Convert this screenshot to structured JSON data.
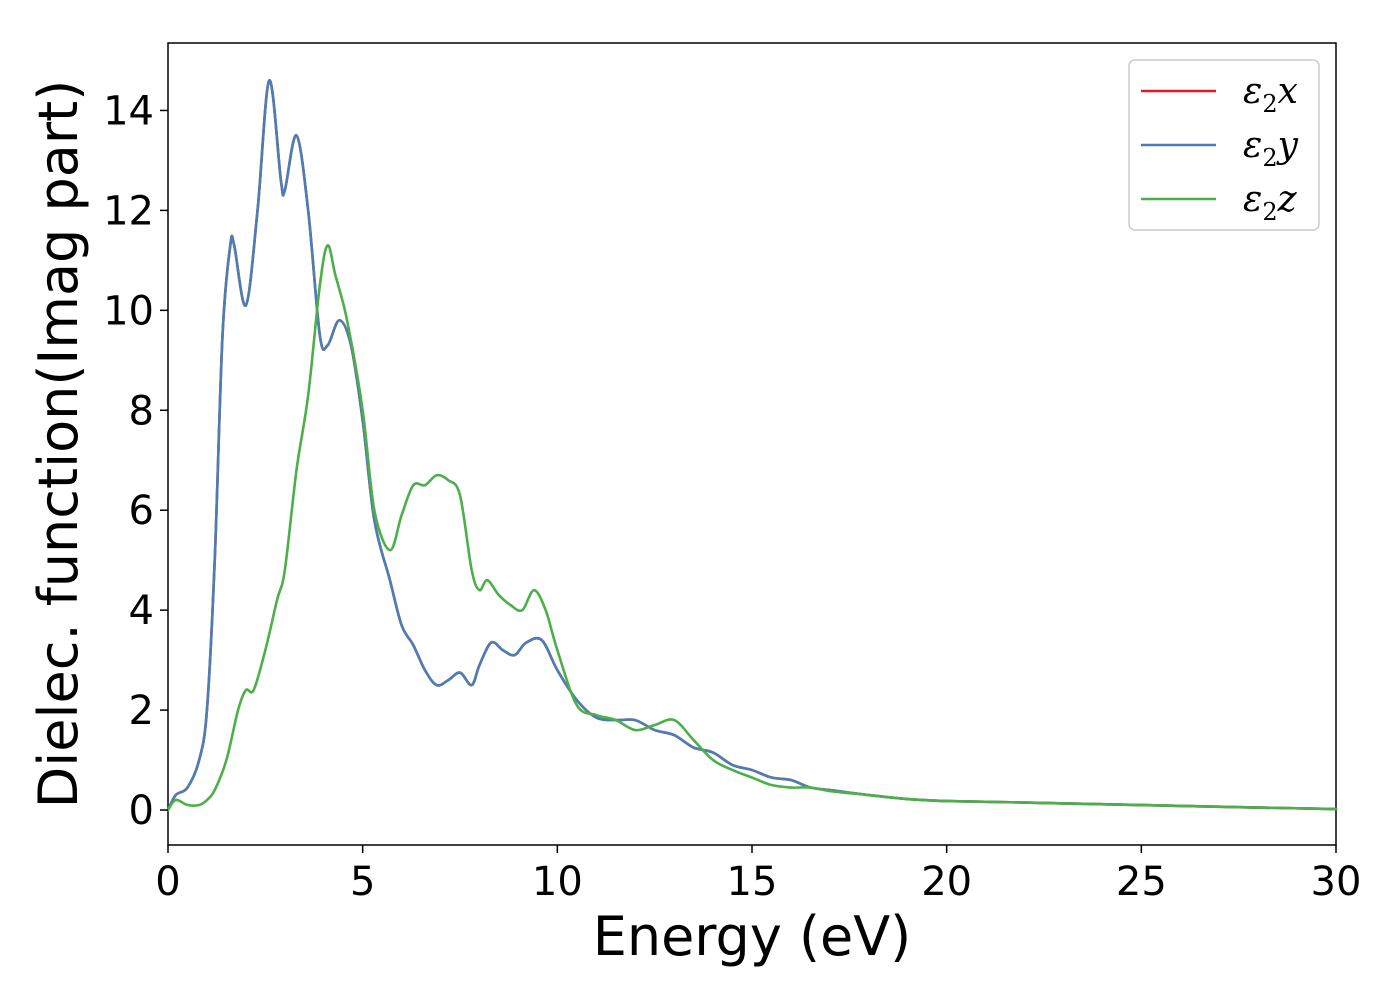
{
  "chart_data": {
    "type": "line",
    "xlabel": "Energy (eV)",
    "ylabel": "Dielec. function(Imag part)",
    "xlim": [
      0,
      30
    ],
    "ylim": [
      -0.7,
      15.35
    ],
    "xticks": [
      0,
      5,
      10,
      15,
      20,
      25,
      30
    ],
    "yticks": [
      0,
      2,
      4,
      6,
      8,
      10,
      12,
      14
    ],
    "grid": false,
    "legend_position": "top-right",
    "series": [
      {
        "name": "ε2x",
        "legend_main": "ε",
        "legend_sub": "2",
        "legend_tail": "x",
        "color": "#e41a1c",
        "x": [
          0,
          0.2,
          0.5,
          0.8,
          1.0,
          1.2,
          1.4,
          1.6,
          1.7,
          2.0,
          2.3,
          2.6,
          2.9,
          3.0,
          3.3,
          3.6,
          3.9,
          4.1,
          4.4,
          4.7,
          5.0,
          5.3,
          5.7,
          6.0,
          6.3,
          6.6,
          6.9,
          7.2,
          7.5,
          7.8,
          8.0,
          8.3,
          8.6,
          8.9,
          9.2,
          9.6,
          10.0,
          10.5,
          11.0,
          11.5,
          12.0,
          12.5,
          13.0,
          13.5,
          14.0,
          14.5,
          15.0,
          15.5,
          16.0,
          16.5,
          17.0,
          18.0,
          19.0,
          20.0,
          22.0,
          25.0,
          28.0,
          30.0
        ],
        "values": [
          0.0,
          0.3,
          0.45,
          1.0,
          2.0,
          5.0,
          9.5,
          11.3,
          11.3,
          10.1,
          12.0,
          14.6,
          12.6,
          12.4,
          13.5,
          12.0,
          9.5,
          9.3,
          9.8,
          9.3,
          7.8,
          5.8,
          4.6,
          3.7,
          3.3,
          2.8,
          2.5,
          2.6,
          2.75,
          2.5,
          2.9,
          3.35,
          3.2,
          3.1,
          3.35,
          3.4,
          2.8,
          2.2,
          1.85,
          1.8,
          1.8,
          1.6,
          1.5,
          1.25,
          1.15,
          0.9,
          0.8,
          0.65,
          0.6,
          0.45,
          0.4,
          0.3,
          0.22,
          0.18,
          0.15,
          0.1,
          0.05,
          0.02
        ]
      },
      {
        "name": "ε2y",
        "legend_main": "ε",
        "legend_sub": "2",
        "legend_tail": "y",
        "color": "#4a7fb5",
        "x": [
          0,
          0.2,
          0.5,
          0.8,
          1.0,
          1.2,
          1.4,
          1.6,
          1.7,
          2.0,
          2.3,
          2.6,
          2.9,
          3.0,
          3.3,
          3.6,
          3.9,
          4.1,
          4.4,
          4.7,
          5.0,
          5.3,
          5.7,
          6.0,
          6.3,
          6.6,
          6.9,
          7.2,
          7.5,
          7.8,
          8.0,
          8.3,
          8.6,
          8.9,
          9.2,
          9.6,
          10.0,
          10.5,
          11.0,
          11.5,
          12.0,
          12.5,
          13.0,
          13.5,
          14.0,
          14.5,
          15.0,
          15.5,
          16.0,
          16.5,
          17.0,
          18.0,
          19.0,
          20.0,
          22.0,
          25.0,
          28.0,
          30.0
        ],
        "values": [
          0.0,
          0.3,
          0.45,
          1.0,
          2.0,
          5.0,
          9.5,
          11.3,
          11.3,
          10.1,
          12.0,
          14.6,
          12.6,
          12.4,
          13.5,
          12.0,
          9.5,
          9.3,
          9.8,
          9.3,
          7.8,
          5.8,
          4.6,
          3.7,
          3.3,
          2.8,
          2.5,
          2.6,
          2.75,
          2.5,
          2.9,
          3.35,
          3.2,
          3.1,
          3.35,
          3.4,
          2.8,
          2.2,
          1.85,
          1.8,
          1.8,
          1.6,
          1.5,
          1.25,
          1.15,
          0.9,
          0.8,
          0.65,
          0.6,
          0.45,
          0.4,
          0.3,
          0.22,
          0.18,
          0.15,
          0.1,
          0.05,
          0.02
        ]
      },
      {
        "name": "ε2z",
        "legend_main": "ε",
        "legend_sub": "2",
        "legend_tail": "z",
        "color": "#4daf4a",
        "x": [
          0,
          0.2,
          0.5,
          0.8,
          1.0,
          1.2,
          1.5,
          1.8,
          2.0,
          2.2,
          2.5,
          2.8,
          3.0,
          3.3,
          3.6,
          3.9,
          4.1,
          4.3,
          4.6,
          5.0,
          5.3,
          5.7,
          6.0,
          6.3,
          6.6,
          6.9,
          7.2,
          7.5,
          7.8,
          8.0,
          8.2,
          8.5,
          8.8,
          9.1,
          9.4,
          9.7,
          10.0,
          10.5,
          11.0,
          11.5,
          12.0,
          12.5,
          13.0,
          13.5,
          14.0,
          14.5,
          15.0,
          15.5,
          16.0,
          16.5,
          17.0,
          18.0,
          19.0,
          20.0,
          22.0,
          25.0,
          28.0,
          30.0
        ],
        "values": [
          0.0,
          0.2,
          0.1,
          0.1,
          0.2,
          0.4,
          1.0,
          2.0,
          2.4,
          2.4,
          3.2,
          4.2,
          4.8,
          6.8,
          8.3,
          10.5,
          11.3,
          10.7,
          9.8,
          8.0,
          6.0,
          5.2,
          5.9,
          6.5,
          6.5,
          6.7,
          6.6,
          6.3,
          4.8,
          4.4,
          4.6,
          4.3,
          4.1,
          4.0,
          4.4,
          4.0,
          3.2,
          2.1,
          1.9,
          1.8,
          1.6,
          1.7,
          1.8,
          1.4,
          1.0,
          0.8,
          0.65,
          0.5,
          0.45,
          0.45,
          0.38,
          0.3,
          0.22,
          0.18,
          0.15,
          0.1,
          0.05,
          0.02
        ]
      }
    ]
  }
}
